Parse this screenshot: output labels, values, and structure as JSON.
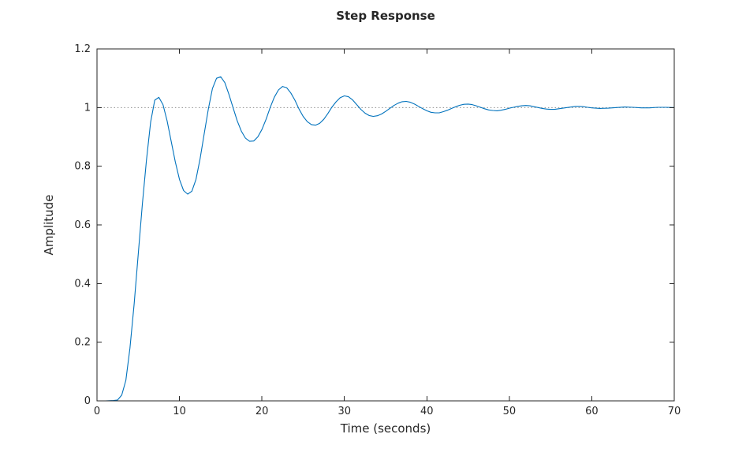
{
  "chart_data": {
    "type": "line",
    "title": "Step Response",
    "xlabel": "Time (seconds)",
    "ylabel": "Amplitude",
    "xlim": [
      0,
      70
    ],
    "ylim": [
      0,
      1.2
    ],
    "x_ticks": [
      0,
      10,
      20,
      30,
      40,
      50,
      60,
      70
    ],
    "x_tick_labels": [
      "0",
      "10",
      "20",
      "30",
      "40",
      "50",
      "60",
      "70"
    ],
    "y_ticks": [
      0,
      0.2,
      0.4,
      0.6,
      0.8,
      1,
      1.2
    ],
    "y_tick_labels": [
      "0",
      "0.2",
      "0.4",
      "0.6",
      "0.8",
      "1",
      "1.2"
    ],
    "grid": false,
    "legend": "none",
    "colors": {
      "line": "#0072BD",
      "axis": "#262626",
      "reference": "#8c8c8c"
    },
    "reference_line": {
      "y": 1,
      "style": "dotted"
    },
    "series": [
      {
        "name": "Step response",
        "x": [
          0,
          1,
          2,
          2.5,
          3,
          3.5,
          4,
          4.5,
          5,
          5.5,
          6,
          6.5,
          7,
          7.5,
          8,
          8.5,
          9,
          9.5,
          10,
          10.5,
          11,
          11.5,
          12,
          12.5,
          13,
          13.5,
          14,
          14.5,
          15,
          15.5,
          16,
          16.5,
          17,
          17.5,
          18,
          18.5,
          19,
          19.5,
          20,
          20.5,
          21,
          21.5,
          22,
          22.5,
          23,
          23.5,
          24,
          24.5,
          25,
          25.5,
          26,
          26.5,
          27,
          27.5,
          28,
          28.5,
          29,
          29.5,
          30,
          30.5,
          31,
          31.5,
          32,
          32.5,
          33,
          33.5,
          34,
          34.5,
          35,
          35.5,
          36,
          36.5,
          37,
          37.5,
          38,
          38.5,
          39,
          39.5,
          40,
          40.5,
          41,
          41.5,
          42,
          42.5,
          43,
          43.5,
          44,
          44.5,
          45,
          45.5,
          46,
          46.5,
          47,
          47.5,
          48,
          48.5,
          49,
          49.5,
          50,
          50.5,
          51,
          51.5,
          52,
          52.5,
          53,
          53.5,
          54,
          54.5,
          55,
          55.5,
          56,
          56.5,
          57,
          57.5,
          58,
          58.5,
          59,
          59.5,
          60,
          61,
          62,
          63,
          64,
          65,
          66,
          67,
          68,
          69,
          70
        ],
        "y": [
          0,
          0,
          0.001,
          0.003,
          0.02,
          0.07,
          0.18,
          0.33,
          0.5,
          0.67,
          0.82,
          0.95,
          1.025,
          1.035,
          1.01,
          0.955,
          0.885,
          0.815,
          0.755,
          0.717,
          0.705,
          0.715,
          0.755,
          0.825,
          0.91,
          0.995,
          1.065,
          1.1,
          1.105,
          1.085,
          1.045,
          1,
          0.955,
          0.92,
          0.896,
          0.885,
          0.886,
          0.9,
          0.925,
          0.96,
          1,
          1.035,
          1.06,
          1.072,
          1.068,
          1.05,
          1.025,
          0.995,
          0.97,
          0.952,
          0.942,
          0.94,
          0.946,
          0.96,
          0.98,
          1.002,
          1.02,
          1.034,
          1.04,
          1.037,
          1.026,
          1.01,
          0.994,
          0.981,
          0.973,
          0.97,
          0.972,
          0.978,
          0.987,
          0.997,
          1.007,
          1.015,
          1.02,
          1.021,
          1.018,
          1.012,
          1.004,
          0.996,
          0.989,
          0.984,
          0.982,
          0.982,
          0.986,
          0.991,
          0.997,
          1.003,
          1.008,
          1.011,
          1.012,
          1.01,
          1.006,
          1.001,
          0.996,
          0.992,
          0.99,
          0.989,
          0.991,
          0.994,
          0.998,
          1.001,
          1.004,
          1.006,
          1.007,
          1.006,
          1.003,
          1,
          0.997,
          0.995,
          0.994,
          0.994,
          0.996,
          0.998,
          1,
          1.002,
          1.004,
          1.004,
          1.003,
          1.001,
          0.999,
          0.997,
          0.998,
          1,
          1.002,
          1.001,
          0.999,
          0.999,
          1.001,
          1.001,
          1
        ]
      }
    ]
  }
}
